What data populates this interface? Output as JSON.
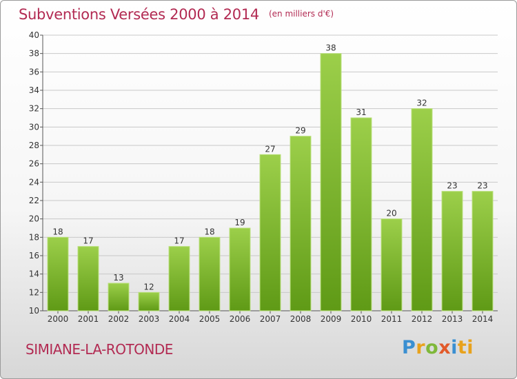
{
  "header": {
    "title": "Subventions Versées 2000 à 2014",
    "unit": "(en milliers d'€)"
  },
  "footer": {
    "commune": "SIMIANE-LA-ROTONDE",
    "logo_letters": [
      "P",
      "r",
      "o",
      "x",
      "i",
      "ti"
    ]
  },
  "colors": {
    "accent": "#b22a52",
    "bar_top": "#9ccf4a",
    "bar_bottom": "#5f9a16",
    "grid": "#c8c8c8"
  },
  "chart_data": {
    "type": "bar",
    "title": "Subventions Versées 2000 à 2014",
    "subtitle": "(en milliers d'€)",
    "xlabel": "",
    "ylabel": "",
    "categories": [
      "2000",
      "2001",
      "2002",
      "2003",
      "2004",
      "2005",
      "2006",
      "2007",
      "2008",
      "2009",
      "2010",
      "2011",
      "2012",
      "2013",
      "2014"
    ],
    "values": [
      18,
      17,
      13,
      12,
      17,
      18,
      19,
      27,
      29,
      38,
      31,
      20,
      32,
      23,
      23
    ],
    "ylim": [
      10,
      40
    ],
    "yticks": [
      10,
      12,
      14,
      16,
      18,
      20,
      22,
      24,
      26,
      28,
      30,
      32,
      34,
      36,
      38,
      40
    ],
    "grid": true,
    "legend": "none"
  }
}
